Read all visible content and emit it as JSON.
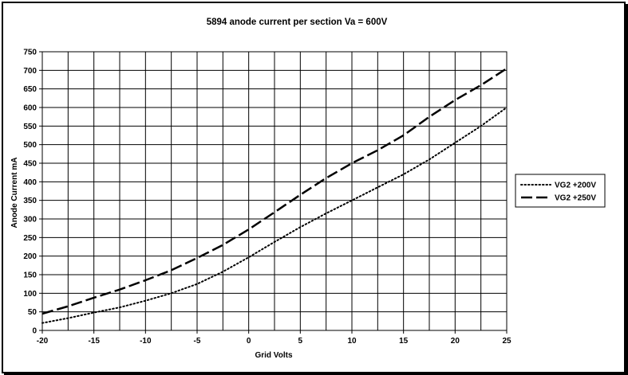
{
  "chart_data": {
    "type": "line",
    "title": "5894 anode current per section  Va = 600V",
    "xlabel": "Grid Volts",
    "ylabel": "Anode Current mA",
    "xlim": [
      -20,
      25
    ],
    "ylim": [
      0,
      750
    ],
    "xticks": [
      -20,
      -15,
      -10,
      -5,
      0,
      5,
      10,
      15,
      20,
      25
    ],
    "yticks": [
      0,
      50,
      100,
      150,
      200,
      250,
      300,
      350,
      400,
      450,
      500,
      550,
      600,
      650,
      700,
      750
    ],
    "grid": true,
    "legend_position": "right",
    "series": [
      {
        "name": "VG2 +200V",
        "style": "dotted",
        "color": "#000000",
        "x": [
          -20,
          -17.5,
          -15,
          -12.5,
          -10,
          -7.5,
          -5,
          -2.5,
          0,
          2.5,
          5,
          7.5,
          10,
          12.5,
          15,
          17.5,
          20,
          22.5,
          25
        ],
        "y": [
          20,
          33,
          48,
          62,
          80,
          100,
          125,
          158,
          197,
          238,
          278,
          315,
          350,
          385,
          420,
          460,
          505,
          550,
          600
        ]
      },
      {
        "name": "VG2 +250V",
        "style": "dashed",
        "color": "#000000",
        "x": [
          -20,
          -17.5,
          -15,
          -12.5,
          -10,
          -7.5,
          -5,
          -2.5,
          0,
          2.5,
          5,
          7.5,
          10,
          12.5,
          15,
          17.5,
          20,
          22.5,
          25
        ],
        "y": [
          45,
          65,
          88,
          110,
          135,
          162,
          195,
          230,
          272,
          318,
          365,
          410,
          450,
          485,
          525,
          575,
          620,
          660,
          705
        ]
      }
    ]
  }
}
